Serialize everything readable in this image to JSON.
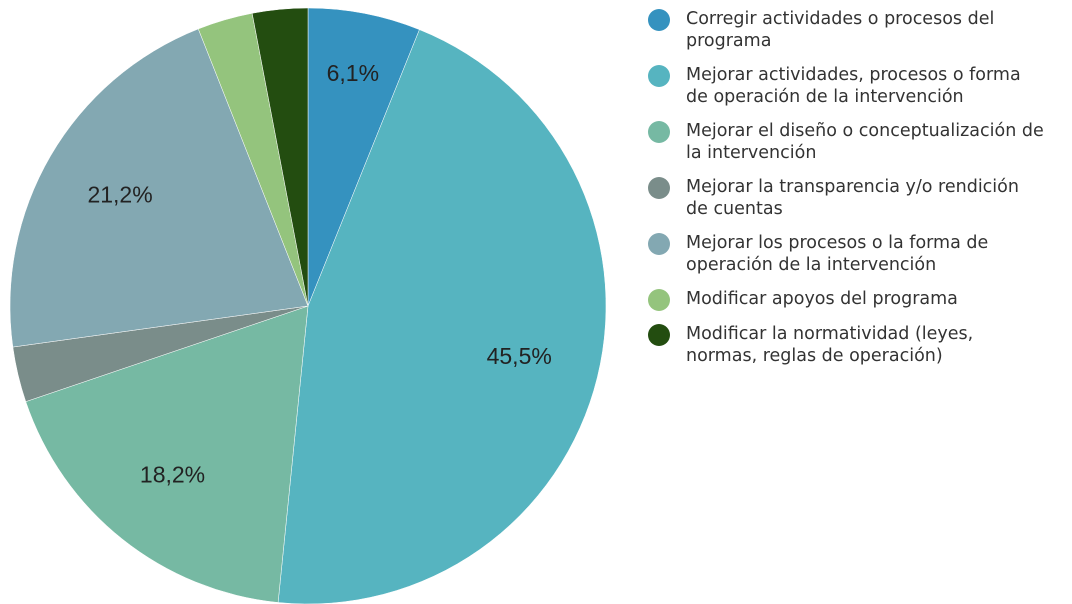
{
  "chart_data": {
    "type": "pie",
    "categories": [
      "Corregir actividades o procesos del programa",
      "Mejorar actividades, procesos o forma de operación de la intervención",
      "Mejorar el diseño o conceptualización de la intervención",
      "Mejorar la transparencia y/o rendición de cuentas",
      "Mejorar los procesos o la forma de operación de la intervención",
      "Modificar apoyos del programa",
      "Modificar la normatividad (leyes, normas, reglas de operación)"
    ],
    "values": [
      6.1,
      45.5,
      18.2,
      3.0,
      21.2,
      3.0,
      3.0
    ],
    "value_labels": [
      "6,1%",
      "45,5%",
      "18,2%",
      null,
      "21,2%",
      null,
      null
    ],
    "colors": [
      "#3592bf",
      "#56b4c0",
      "#76b9a3",
      "#7a8d8a",
      "#83a8b2",
      "#94c47d",
      "#234d10"
    ],
    "legend": "right"
  }
}
